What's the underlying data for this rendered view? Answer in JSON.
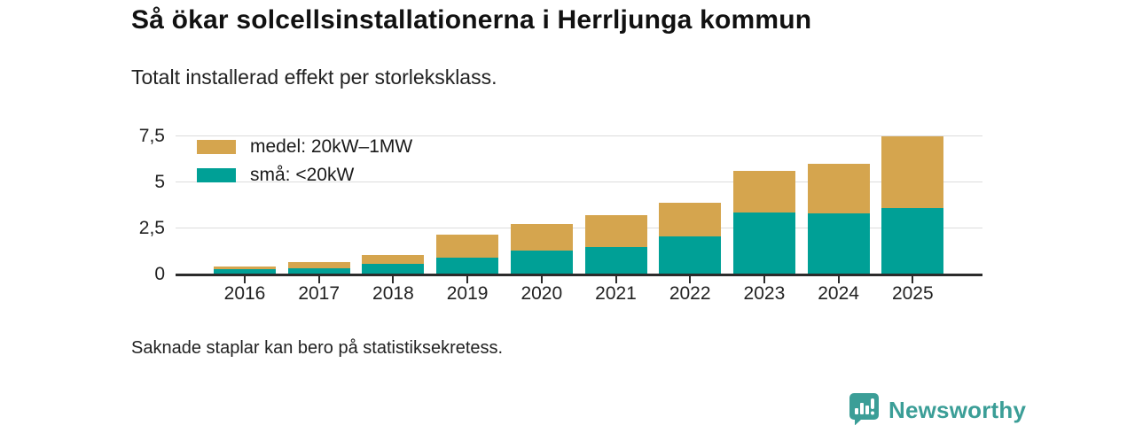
{
  "header": {
    "title": "Så ökar solcellsinstallationerna i Herrljunga kommun",
    "subtitle": "Totalt installerad effekt per storleksklass."
  },
  "footnote": "Saknade staplar kan bero på statistiksekretess.",
  "branding": {
    "logo_text": "Newsworthy",
    "logo_color": "#3b9e97"
  },
  "colors": {
    "medel": "#d5a54e",
    "sma": "#00a096",
    "gridline": "#dcdcdc",
    "axis": "#2b2b2b"
  },
  "chart_data": {
    "type": "bar",
    "stacked": true,
    "title": "Så ökar solcellsinstallationerna i Herrljunga kommun",
    "subtitle": "Totalt installerad effekt per storleksklass.",
    "categories": [
      "2016",
      "2017",
      "2018",
      "2019",
      "2020",
      "2021",
      "2022",
      "2023",
      "2024",
      "2025"
    ],
    "series": [
      {
        "name": "medel: 20kW–1MW",
        "color": "#d5a54e",
        "values": [
          0.13,
          0.32,
          0.51,
          1.25,
          1.45,
          1.75,
          1.83,
          2.3,
          2.67,
          3.85
        ]
      },
      {
        "name": "små: <20kW",
        "color": "#00a096",
        "values": [
          0.3,
          0.36,
          0.56,
          0.9,
          1.3,
          1.48,
          2.07,
          3.35,
          3.33,
          3.63
        ]
      }
    ],
    "stack_order_bottom_to_top": [
      "små: <20kW",
      "medel: 20kW–1MW"
    ],
    "ylim": [
      0,
      7.5
    ],
    "ytick_values": [
      0,
      2.5,
      5,
      7.5
    ],
    "yticks": [
      "0",
      "2,5",
      "5",
      "7,5"
    ],
    "xlabel": "",
    "ylabel": "",
    "grid": true,
    "legend_position": "top-left"
  }
}
